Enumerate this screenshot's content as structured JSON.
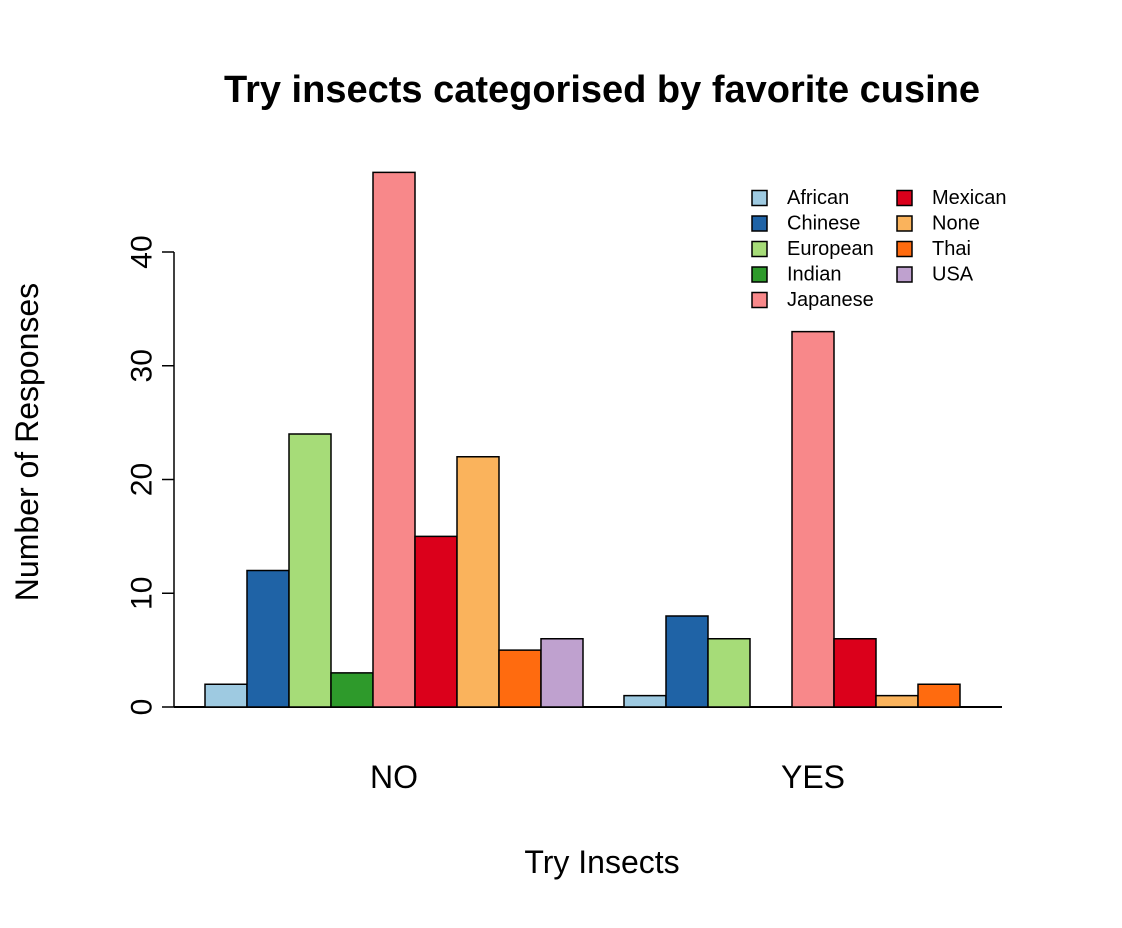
{
  "chart_data": {
    "type": "bar",
    "title": "Try insects categorised by favorite cusine",
    "xlabel": "Try Insects",
    "ylabel": "Number of Responses",
    "categories": [
      "NO",
      "YES"
    ],
    "ylim": [
      0,
      47
    ],
    "yticks": [
      0,
      10,
      20,
      30,
      40
    ],
    "grid": false,
    "legend_position": "top-right",
    "series": [
      {
        "name": "African",
        "color": "#9ECAE1",
        "values": [
          2,
          1
        ]
      },
      {
        "name": "Chinese",
        "color": "#1F63A6",
        "values": [
          12,
          8
        ]
      },
      {
        "name": "European",
        "color": "#A6DC78",
        "values": [
          24,
          6
        ]
      },
      {
        "name": "Indian",
        "color": "#2E9A2B",
        "values": [
          3,
          0
        ]
      },
      {
        "name": "Japanese",
        "color": "#F8888A",
        "values": [
          47,
          33
        ]
      },
      {
        "name": "Mexican",
        "color": "#DB001B",
        "values": [
          15,
          6
        ]
      },
      {
        "name": "None",
        "color": "#FAB35C",
        "values": [
          22,
          1
        ]
      },
      {
        "name": "Thai",
        "color": "#FF6B0F",
        "values": [
          5,
          2
        ]
      },
      {
        "name": "USA",
        "color": "#BFA1CF",
        "values": [
          6,
          0
        ]
      }
    ]
  }
}
